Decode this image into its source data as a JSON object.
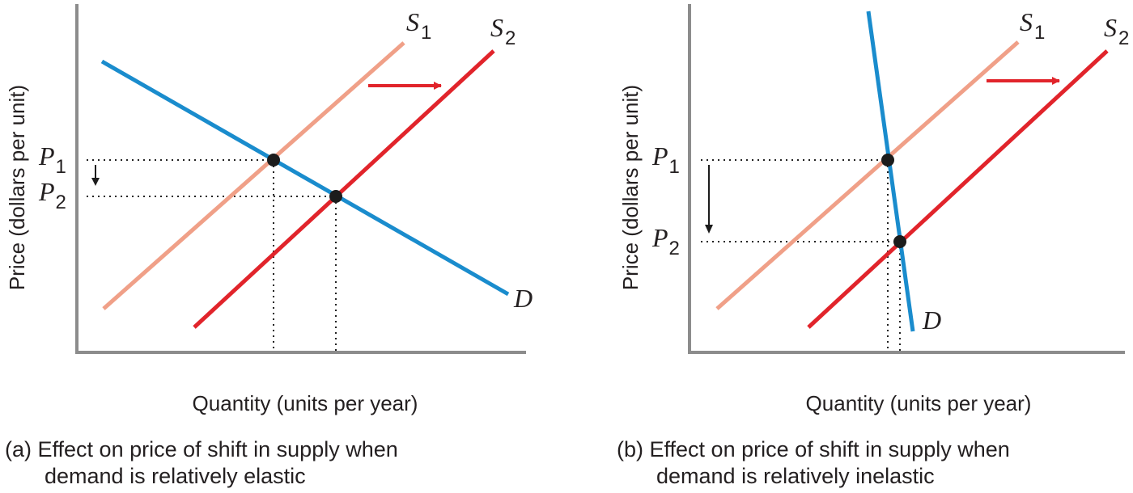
{
  "panel_a": {
    "ylabel": "Price (dollars per unit)",
    "xlabel": "Quantity (units per year)",
    "supply1_label": "S",
    "supply1_sub": "1",
    "supply2_label": "S",
    "supply2_sub": "2",
    "demand_label": "D",
    "price1_label": "P",
    "price1_sub": "1",
    "price2_label": "P",
    "price2_sub": "2",
    "caption_tag": "(a)",
    "caption_line1": "Effect on price of shift in supply when",
    "caption_line2": "demand is relatively elastic"
  },
  "panel_b": {
    "ylabel": "Price (dollars per unit)",
    "xlabel": "Quantity (units per year)",
    "supply1_label": "S",
    "supply1_sub": "1",
    "supply2_label": "S",
    "supply2_sub": "2",
    "demand_label": "D",
    "price1_label": "P",
    "price1_sub": "1",
    "price2_label": "P",
    "price2_sub": "2",
    "caption_tag": "(b)",
    "caption_line1": "Effect on price of shift in supply when",
    "caption_line2": "demand is relatively inelastic"
  },
  "colors": {
    "supply1": "#f0a088",
    "supply2": "#e1242b",
    "demand": "#1a8ccd",
    "shift_arrow": "#e1242b",
    "equilibrium_dot": "#1c1c1c",
    "axis": "#8c8c8c"
  }
}
